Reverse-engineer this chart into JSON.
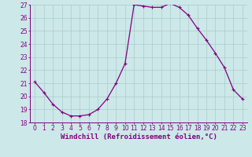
{
  "x": [
    0,
    1,
    2,
    3,
    4,
    5,
    6,
    7,
    8,
    9,
    10,
    11,
    12,
    13,
    14,
    15,
    16,
    17,
    18,
    19,
    20,
    21,
    22,
    23
  ],
  "y": [
    21.1,
    20.3,
    19.4,
    18.8,
    18.5,
    18.5,
    18.6,
    19.0,
    19.8,
    21.0,
    22.5,
    27.0,
    26.9,
    26.8,
    26.8,
    27.1,
    26.8,
    26.2,
    25.2,
    24.3,
    23.3,
    22.2,
    20.5,
    19.8
  ],
  "line_color": "#800080",
  "marker": "+",
  "marker_size": 3,
  "marker_lw": 0.8,
  "xlabel": "Windchill (Refroidissement éolien,°C)",
  "xlabel_fontsize": 6.5,
  "ylim": [
    18,
    27
  ],
  "yticks": [
    18,
    19,
    20,
    21,
    22,
    23,
    24,
    25,
    26,
    27
  ],
  "xticks": [
    0,
    1,
    2,
    3,
    4,
    5,
    6,
    7,
    8,
    9,
    10,
    11,
    12,
    13,
    14,
    15,
    16,
    17,
    18,
    19,
    20,
    21,
    22,
    23
  ],
  "bg_color": "#cce8e8",
  "grid_color": "#aacccc",
  "tick_color": "#800080",
  "tick_fontsize": 5.5,
  "line_width": 0.9
}
